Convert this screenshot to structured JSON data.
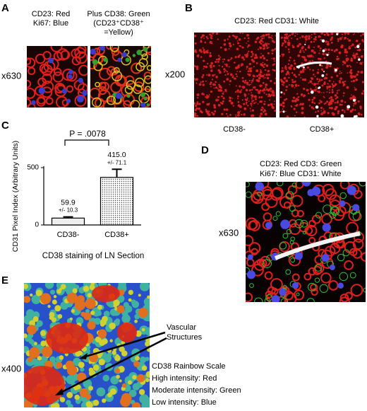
{
  "panels": {
    "A": {
      "label": "A",
      "left_caption": [
        "CD23: Red",
        "Ki67: Blue"
      ],
      "right_caption": [
        "Plus CD38: Green",
        "(CD23⁺CD38⁺",
        "=Yellow)"
      ],
      "magnification": "x630"
    },
    "B": {
      "label": "B",
      "caption": "CD23: Red  CD31: White",
      "magnification": "x200",
      "image_labels": [
        "CD38-",
        "CD38+"
      ]
    },
    "D": {
      "label": "D",
      "caption": [
        "CD23: Red  CD3: Green",
        "Ki67: Blue   CD31: White"
      ],
      "magnification": "x630"
    },
    "E": {
      "label": "E",
      "magnification": "x400",
      "arrow_label": [
        "Vascular",
        "Structures"
      ],
      "legend": [
        "CD38 Rainbow Scale",
        "High intensity: Red",
        "Moderate intensity: Green",
        "Low intensity: Blue"
      ]
    }
  },
  "chart_data": {
    "type": "bar",
    "panel_label": "C",
    "annotation": "P = .0078",
    "categories": [
      "CD38-",
      "CD38+"
    ],
    "values": [
      59.9,
      415.0
    ],
    "value_labels": [
      "59.9",
      "415.0"
    ],
    "errors": [
      10.3,
      71.1
    ],
    "error_labels": [
      "+/- 10.3",
      "+/- 71.1"
    ],
    "ylim": [
      0,
      500
    ],
    "yticks": [
      0,
      500
    ],
    "ylabel": "CD31 Pixel Index (Arbitrary Units)",
    "xlabel": "CD38 staining of LN Section"
  }
}
